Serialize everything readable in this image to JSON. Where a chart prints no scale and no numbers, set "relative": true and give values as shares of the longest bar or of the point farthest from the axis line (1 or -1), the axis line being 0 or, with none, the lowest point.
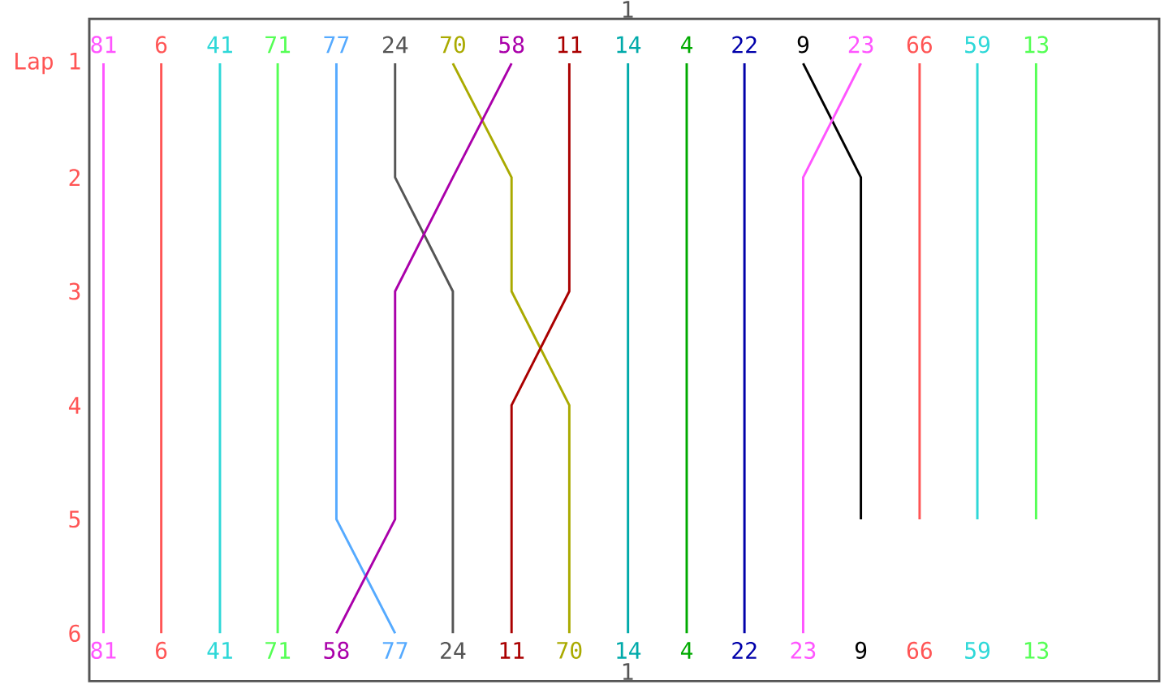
{
  "chart_data": {
    "type": "line",
    "orientation": "horizontal",
    "relative": true,
    "categories": [
      "Lap 1",
      "2",
      "3",
      "4",
      "5",
      "6"
    ],
    "annotations": [
      "1",
      "1"
    ],
    "series": [
      {
        "name": "81",
        "color": "#ff55ff",
        "values": [
          0.015,
          0.015,
          0.015,
          0.015,
          0.015,
          0.015
        ]
      },
      {
        "name": "6",
        "color": "#ff5555",
        "values": [
          0.076,
          0.076,
          0.076,
          0.076,
          0.076,
          0.076
        ]
      },
      {
        "name": "41",
        "color": "#2ed8d8",
        "values": [
          0.138,
          0.138,
          0.138,
          0.138,
          0.138,
          0.138
        ]
      },
      {
        "name": "71",
        "color": "#55ff55",
        "values": [
          0.199,
          0.199,
          0.199,
          0.199,
          0.199,
          0.199
        ]
      },
      {
        "name": "77",
        "color": "#55aaff",
        "values": [
          0.261,
          0.261,
          0.261,
          0.261,
          0.261,
          0.323
        ]
      },
      {
        "name": "24",
        "color": "#555555",
        "values": [
          0.323,
          0.323,
          0.384,
          0.384,
          0.384,
          0.384
        ]
      },
      {
        "name": "70",
        "color": "#aaaa00",
        "values": [
          0.384,
          0.446,
          0.446,
          0.507,
          0.507,
          0.507
        ]
      },
      {
        "name": "58",
        "color": "#aa00aa",
        "values": [
          0.446,
          0.384,
          0.323,
          0.323,
          0.323,
          0.261
        ]
      },
      {
        "name": "11",
        "color": "#aa0000",
        "values": [
          0.507,
          0.507,
          0.507,
          0.446,
          0.446,
          0.446
        ]
      },
      {
        "name": "14",
        "color": "#00aaaa",
        "values": [
          0.569,
          0.569,
          0.569,
          0.569,
          0.569,
          0.569
        ]
      },
      {
        "name": "4",
        "color": "#00aa00",
        "values": [
          0.631,
          0.631,
          0.631,
          0.631,
          0.631,
          0.631
        ]
      },
      {
        "name": "22",
        "color": "#0000aa",
        "values": [
          0.692,
          0.692,
          0.692,
          0.692,
          0.692,
          0.692
        ]
      },
      {
        "name": "9",
        "color": "#000000",
        "values": [
          0.754,
          0.815,
          0.815,
          0.815,
          0.815,
          null
        ]
      },
      {
        "name": "23",
        "color": "#ff55ff",
        "values": [
          0.815,
          0.754,
          0.754,
          0.754,
          0.754,
          0.754
        ]
      },
      {
        "name": "66",
        "color": "#ff5555",
        "values": [
          0.877,
          0.877,
          0.877,
          0.877,
          0.877,
          null
        ]
      },
      {
        "name": "59",
        "color": "#2ed8d8",
        "values": [
          0.938,
          0.938,
          0.938,
          0.938,
          0.938,
          null
        ]
      },
      {
        "name": "13",
        "color": "#55ff55",
        "values": [
          1.0,
          1.0,
          1.0,
          1.0,
          1.0,
          null
        ]
      }
    ]
  }
}
